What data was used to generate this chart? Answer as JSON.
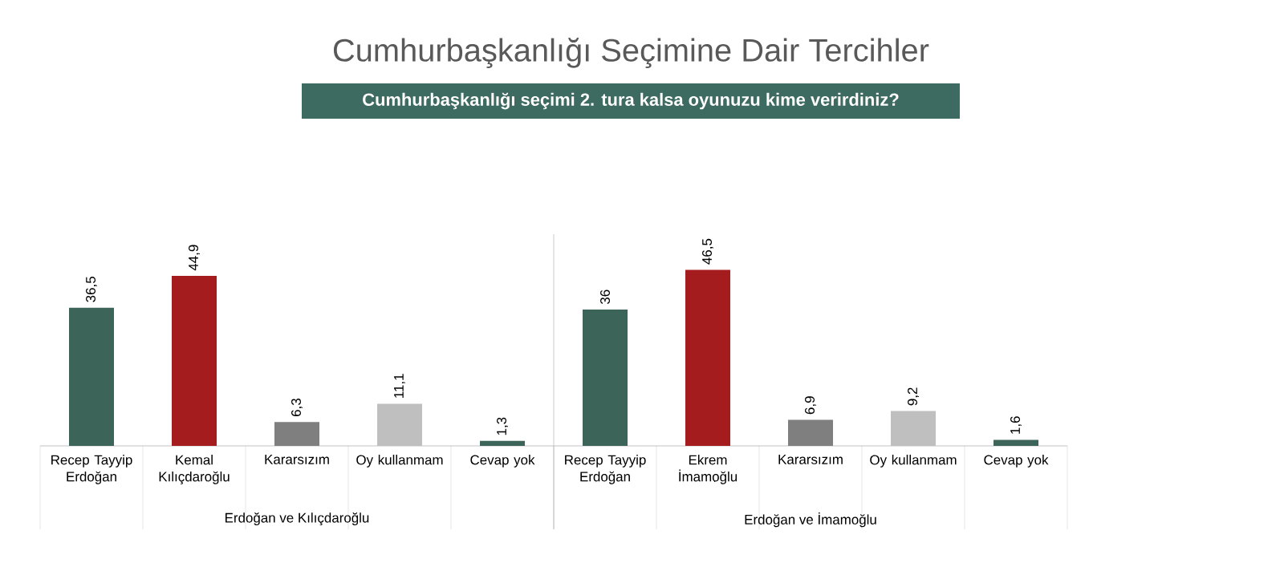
{
  "chart_data": [
    {
      "type": "bar",
      "title": "Cumhurbaşkanlığı Seçimine Dair Tercihler",
      "subtitle": "Cumhurbaşkanlığı seçimi 2. tura kalsa oyunuzu kime verirdiniz?",
      "xlabel": "Erdoğan ve Kılıçdaroğlu",
      "categories": [
        "Recep Tayyip Erdoğan",
        "Kemal Kılıçdaroğlu",
        "Kararsızım",
        "Oy kullanmam",
        "Cevap yok"
      ],
      "values": [
        36.5,
        44.9,
        6.3,
        11.1,
        1.3
      ],
      "value_labels": [
        "36,5",
        "44,9",
        "6,3",
        "11,1",
        "1,3"
      ],
      "colors": [
        "#3d6459",
        "#a51c1f",
        "#7f7f7f",
        "#bfbfbf",
        "#3d6459"
      ]
    },
    {
      "type": "bar",
      "xlabel": "Erdoğan ve İmamoğlu",
      "categories": [
        "Recep Tayyip Erdoğan",
        "Ekrem İmamoğlu",
        "Kararsızım",
        "Oy kullanmam",
        "Cevap yok"
      ],
      "values": [
        36,
        46.5,
        6.9,
        9.2,
        1.6
      ],
      "value_labels": [
        "36",
        "46,5",
        "6,9",
        "9,2",
        "1,6"
      ],
      "colors": [
        "#3d6459",
        "#a51c1f",
        "#7f7f7f",
        "#bfbfbf",
        "#3d6459"
      ]
    }
  ]
}
